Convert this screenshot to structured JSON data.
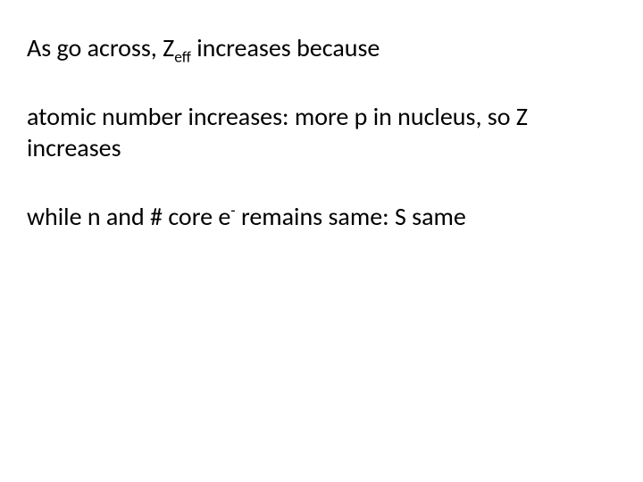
{
  "slide": {
    "background_color": "#ffffff",
    "text_color": "#000000",
    "font_family": "Calibri",
    "font_size_pt": 28,
    "blocks": [
      {
        "pre": "As go across, Z",
        "sub": "eff",
        "post": " increases because"
      },
      {
        "text": "atomic number increases: more p in nucleus, so Z increases"
      },
      {
        "pre": "while n and # core e",
        "sup": "-",
        "post": " remains same: S same"
      }
    ]
  }
}
